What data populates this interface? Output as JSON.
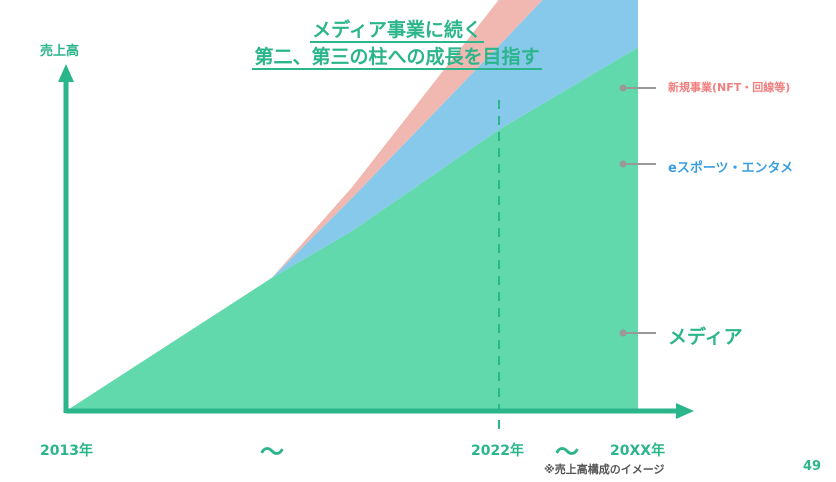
{
  "title": {
    "line1": "メディア事業に続く",
    "line2": "第二、第三の柱への成長を目指す"
  },
  "chart_data": {
    "type": "area",
    "stacked": true,
    "ylabel": "売上高",
    "x_ticks": [
      {
        "label": "2013年",
        "x": 0
      },
      {
        "label": "〜",
        "x": 0.36
      },
      {
        "label": "2022年",
        "x": 0.757
      },
      {
        "label": "〜",
        "x": 0.87
      },
      {
        "label": "20XX年",
        "x": 1.0
      }
    ],
    "marker": {
      "type": "dashed-vertical",
      "x": 0.757,
      "label": "2022年"
    },
    "x": [
      0,
      0.36,
      0.5,
      0.757,
      1.0
    ],
    "series": [
      {
        "name": "メディア",
        "values": [
          0,
          0.222,
          0.3,
          0.469,
          0.606
        ]
      },
      {
        "name": "eスポーツ・エンタメ",
        "values": [
          0,
          0,
          0.055,
          0.14,
          0.246
        ]
      },
      {
        "name": "新規事業(NFT・回線等)",
        "values": [
          0,
          0,
          0.018,
          0.077,
          0.181
        ]
      }
    ],
    "colors": {
      "メディア": "#62d8ad",
      "eスポーツ・エンタメ": "#87c9ea",
      "新規事業(NFT・回線等)": "#f0b8b0"
    },
    "legend_colors": {
      "メディア": "#2bb58a",
      "eスポーツ・エンタメ": "#3a9ee0",
      "新規事業(NFT・回線等)": "#f08080"
    },
    "axis_color": "#2bb58a"
  },
  "note": "※売上高構成のイメージ",
  "page_number": "49"
}
